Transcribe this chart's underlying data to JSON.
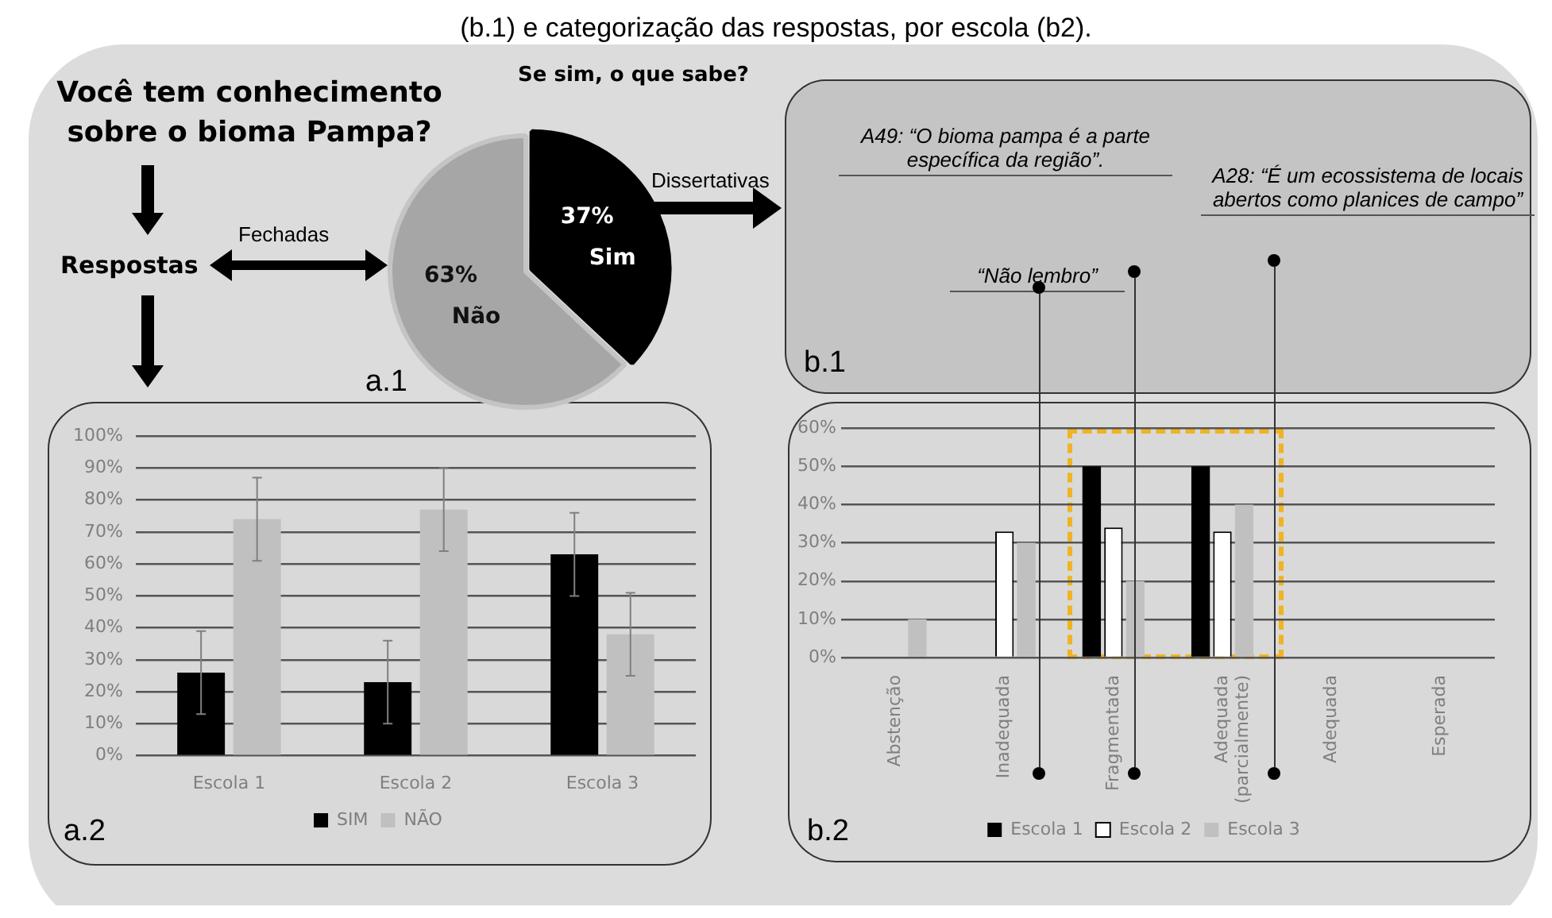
{
  "chart_data": [
    {
      "type": "pie",
      "categories": [
        "Sim",
        "Não"
      ],
      "values": [
        37,
        63
      ],
      "colors": [
        "#000000",
        "#a6a6a6"
      ],
      "value_labels": [
        "37%",
        "63%"
      ],
      "legend": false,
      "annotations": [
        "(b.1) e categorização das respostas, por escola (b2).",
        "Você tem conhecimento sobre o bioma Pampa?",
        "Respostas",
        "Fechadas",
        "Se sim, o que sabe?",
        "Dissertativas",
        "a.1"
      ]
    },
    {
      "type": "bar",
      "categories": [
        "Escola 1",
        "Escola 2",
        "Escola 3"
      ],
      "series": [
        {
          "name": "SIM",
          "color": "#000000",
          "values": [
            26,
            23,
            63
          ],
          "errors": [
            13,
            13,
            13
          ]
        },
        {
          "name": "NÃO",
          "color": "#c0c0c0",
          "values": [
            74,
            77,
            38
          ],
          "errors": [
            13,
            13,
            13
          ]
        }
      ],
      "ylim": [
        0,
        100
      ],
      "yticks": [
        {
          "value": 0,
          "label": "0%"
        },
        {
          "value": 10,
          "label": "10%"
        },
        {
          "value": 20,
          "label": "20%"
        },
        {
          "value": 30,
          "label": "30%"
        },
        {
          "value": 40,
          "label": "40%"
        },
        {
          "value": 50,
          "label": "50%"
        },
        {
          "value": 60,
          "label": "60%"
        },
        {
          "value": 70,
          "label": "70%"
        },
        {
          "value": 80,
          "label": "80%"
        },
        {
          "value": 90,
          "label": "90%"
        },
        {
          "value": 100,
          "label": "100%"
        }
      ],
      "grid": "y",
      "legend": "bottom",
      "annotations": [
        "a.2"
      ]
    },
    {
      "type": "bar",
      "categories": [
        "Abstenção",
        "Inadequada",
        "Fragmentada",
        "Adequada (parcialmente)",
        "Adequada",
        "Esperada"
      ],
      "series": [
        {
          "name": "Escola 1",
          "color": "#000000",
          "values": [
            0,
            0,
            50,
            50,
            0,
            0
          ]
        },
        {
          "name": "Escola 2",
          "color": "#ffffff",
          "values": [
            0,
            33,
            34,
            33,
            0,
            0
          ]
        },
        {
          "name": "Escola 3",
          "color": "#c0c0c0",
          "values": [
            10,
            30,
            20,
            40,
            0,
            0
          ]
        }
      ],
      "ylim": [
        0,
        60
      ],
      "yticks": [
        {
          "value": 0,
          "label": "0%"
        },
        {
          "value": 10,
          "label": "10%"
        },
        {
          "value": 20,
          "label": "20%"
        },
        {
          "value": 30,
          "label": "30%"
        },
        {
          "value": 40,
          "label": "40%"
        },
        {
          "value": 50,
          "label": "50%"
        },
        {
          "value": 60,
          "label": "60%"
        }
      ],
      "grid": "y",
      "legend": "bottom",
      "annotations": [
        "b.1",
        "A49: “O bioma pampa é a parte específica da região”.",
        "“Não lembro”",
        "A28: “É um ecossistema de locais abertos como planices de campo”",
        "b.2"
      ]
    }
  ]
}
